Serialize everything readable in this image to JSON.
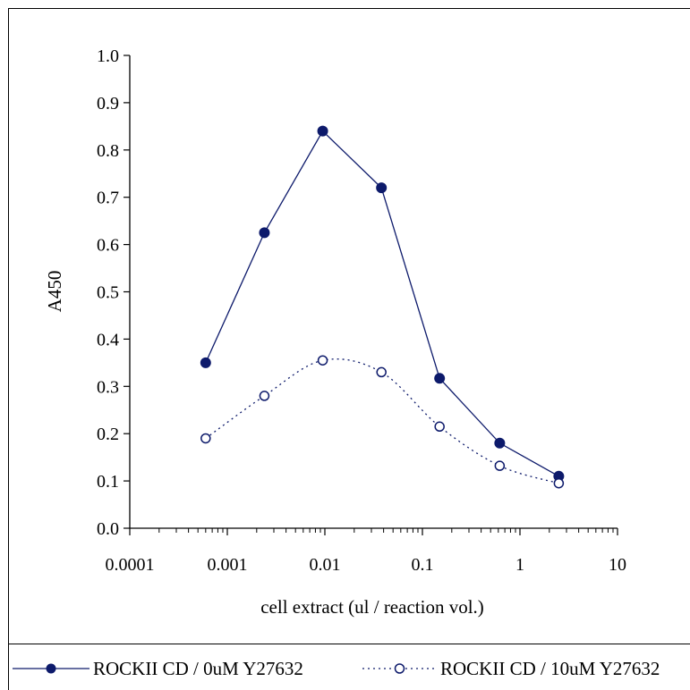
{
  "chart_data": {
    "type": "line",
    "xscale": "log",
    "xlabel": "cell extract (ul / reaction vol.)",
    "ylabel": "A450",
    "xlim": [
      0.0001,
      10
    ],
    "ylim": [
      0.0,
      1.0
    ],
    "x_ticks": [
      "0.0001",
      "0.001",
      "0.01",
      "0.1",
      "1",
      "10"
    ],
    "y_ticks": [
      "0.0",
      "0.1",
      "0.2",
      "0.3",
      "0.4",
      "0.5",
      "0.6",
      "0.7",
      "0.8",
      "0.9",
      "1.0"
    ],
    "grid": false,
    "legend_position": "bottom",
    "x": [
      0.0006,
      0.0024,
      0.0095,
      0.038,
      0.15,
      0.62,
      2.5
    ],
    "series": [
      {
        "name": "ROCKII CD / 0uM Y27632",
        "values": [
          0.35,
          0.625,
          0.84,
          0.72,
          0.317,
          0.18,
          0.11
        ],
        "color": "#0d1a6b",
        "marker": "filled-circle",
        "line": "solid"
      },
      {
        "name": "ROCKII CD / 10uM Y27632",
        "values": [
          0.19,
          0.28,
          0.355,
          0.33,
          0.215,
          0.132,
          0.095
        ],
        "color": "#0d1a6b",
        "marker": "open-circle",
        "line": "dotted"
      }
    ]
  }
}
